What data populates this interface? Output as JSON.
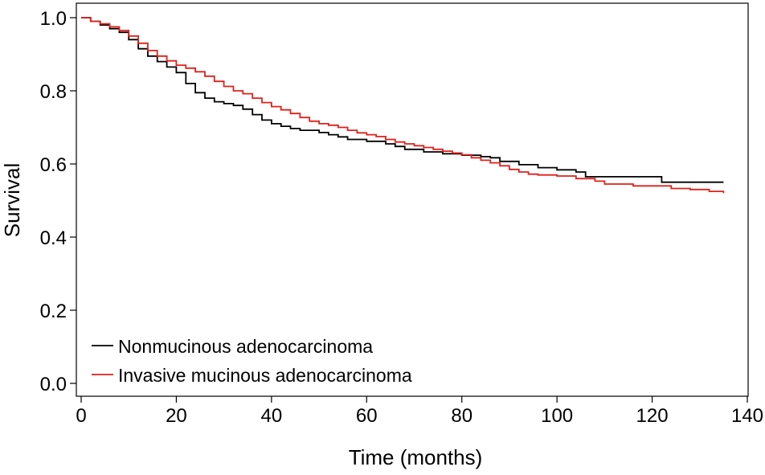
{
  "chart_data": {
    "type": "line",
    "title": "",
    "xlabel": "Time (months)",
    "ylabel": "Survival",
    "xlim": [
      0,
      140
    ],
    "ylim": [
      0.0,
      1.0
    ],
    "x_ticks": [
      "0",
      "20",
      "40",
      "60",
      "80",
      "100",
      "120",
      "140"
    ],
    "y_ticks": [
      "0.0",
      "0.2",
      "0.4",
      "0.6",
      "0.8",
      "1.0"
    ],
    "grid": false,
    "legend_position": "bottom-left",
    "series": [
      {
        "name": "Nonmucinous adenocarcinoma",
        "color": "#000000",
        "step": true,
        "points": [
          [
            0,
            1.0
          ],
          [
            2,
            0.99
          ],
          [
            4,
            0.98
          ],
          [
            6,
            0.97
          ],
          [
            8,
            0.96
          ],
          [
            10,
            0.94
          ],
          [
            12,
            0.915
          ],
          [
            14,
            0.895
          ],
          [
            16,
            0.88
          ],
          [
            18,
            0.865
          ],
          [
            20,
            0.85
          ],
          [
            22,
            0.82
          ],
          [
            24,
            0.795
          ],
          [
            26,
            0.78
          ],
          [
            28,
            0.77
          ],
          [
            30,
            0.765
          ],
          [
            32,
            0.76
          ],
          [
            34,
            0.75
          ],
          [
            36,
            0.735
          ],
          [
            38,
            0.72
          ],
          [
            40,
            0.71
          ],
          [
            42,
            0.703
          ],
          [
            44,
            0.697
          ],
          [
            46,
            0.692
          ],
          [
            50,
            0.686
          ],
          [
            52,
            0.68
          ],
          [
            54,
            0.674
          ],
          [
            56,
            0.667
          ],
          [
            60,
            0.662
          ],
          [
            64,
            0.655
          ],
          [
            66,
            0.648
          ],
          [
            68,
            0.64
          ],
          [
            72,
            0.633
          ],
          [
            76,
            0.628
          ],
          [
            80,
            0.624
          ],
          [
            84,
            0.62
          ],
          [
            86,
            0.617
          ],
          [
            88,
            0.607
          ],
          [
            92,
            0.598
          ],
          [
            96,
            0.59
          ],
          [
            100,
            0.584
          ],
          [
            104,
            0.578
          ],
          [
            106,
            0.565
          ],
          [
            110,
            0.565
          ],
          [
            122,
            0.55
          ],
          [
            135,
            0.55
          ]
        ]
      },
      {
        "name": "Invasive mucinous adenocarcinoma",
        "color": "#e0201b",
        "step": true,
        "points": [
          [
            0,
            1.0
          ],
          [
            2,
            0.99
          ],
          [
            4,
            0.983
          ],
          [
            6,
            0.975
          ],
          [
            8,
            0.965
          ],
          [
            10,
            0.95
          ],
          [
            12,
            0.93
          ],
          [
            14,
            0.91
          ],
          [
            16,
            0.895
          ],
          [
            18,
            0.882
          ],
          [
            20,
            0.87
          ],
          [
            22,
            0.862
          ],
          [
            24,
            0.852
          ],
          [
            26,
            0.84
          ],
          [
            28,
            0.826
          ],
          [
            30,
            0.812
          ],
          [
            32,
            0.8
          ],
          [
            34,
            0.792
          ],
          [
            36,
            0.78
          ],
          [
            38,
            0.768
          ],
          [
            40,
            0.757
          ],
          [
            42,
            0.748
          ],
          [
            44,
            0.738
          ],
          [
            46,
            0.727
          ],
          [
            48,
            0.717
          ],
          [
            50,
            0.71
          ],
          [
            52,
            0.706
          ],
          [
            54,
            0.7
          ],
          [
            56,
            0.692
          ],
          [
            58,
            0.685
          ],
          [
            60,
            0.68
          ],
          [
            62,
            0.675
          ],
          [
            64,
            0.667
          ],
          [
            66,
            0.66
          ],
          [
            68,
            0.655
          ],
          [
            70,
            0.65
          ],
          [
            72,
            0.645
          ],
          [
            74,
            0.64
          ],
          [
            76,
            0.635
          ],
          [
            78,
            0.63
          ],
          [
            80,
            0.625
          ],
          [
            82,
            0.617
          ],
          [
            84,
            0.61
          ],
          [
            86,
            0.603
          ],
          [
            88,
            0.595
          ],
          [
            90,
            0.585
          ],
          [
            92,
            0.578
          ],
          [
            94,
            0.572
          ],
          [
            96,
            0.57
          ],
          [
            100,
            0.567
          ],
          [
            104,
            0.56
          ],
          [
            108,
            0.553
          ],
          [
            110,
            0.545
          ],
          [
            116,
            0.54
          ],
          [
            124,
            0.533
          ],
          [
            128,
            0.53
          ],
          [
            132,
            0.525
          ],
          [
            135,
            0.52
          ]
        ]
      }
    ]
  }
}
